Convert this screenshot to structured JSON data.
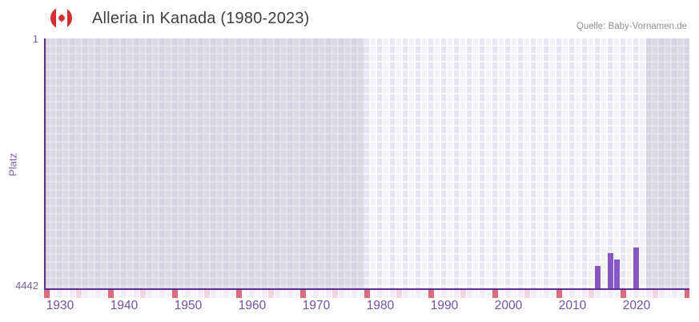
{
  "header": {
    "title": "Alleria in Kanada (1980-2023)",
    "source": "Quelle: Baby-Vornamen.de",
    "flag": "canada"
  },
  "chart_data": {
    "type": "bar",
    "title": "Alleria in Kanada (1980-2023)",
    "ylabel": "Platz",
    "xlabel": "",
    "grid": true,
    "legend": false,
    "y_axis": {
      "top_label": "1",
      "bottom_label": "4442",
      "min": 1,
      "max": 4442,
      "inverted": true
    },
    "x_ticks": [
      1930,
      1940,
      1950,
      1960,
      1970,
      1980,
      1990,
      2000,
      2010,
      2020
    ],
    "x_range": [
      1928,
      2029
    ],
    "data_range_years": [
      1980,
      2023
    ],
    "points": [
      {
        "year": 2014,
        "rank": 4040
      },
      {
        "year": 2016,
        "rank": 3810
      },
      {
        "year": 2017,
        "rank": 3925
      },
      {
        "year": 2020,
        "rank": 3710
      }
    ],
    "colors": {
      "bar": "#8a56c4",
      "axis": "#55328a",
      "tick_label": "#6f549e",
      "strip_red": "#e06a7b",
      "strip_pink": "#f3d3de",
      "strip_base_a": "#f1edf8",
      "strip_base_b": "#f7f4fc",
      "flag_red": "#d32f2f"
    }
  }
}
